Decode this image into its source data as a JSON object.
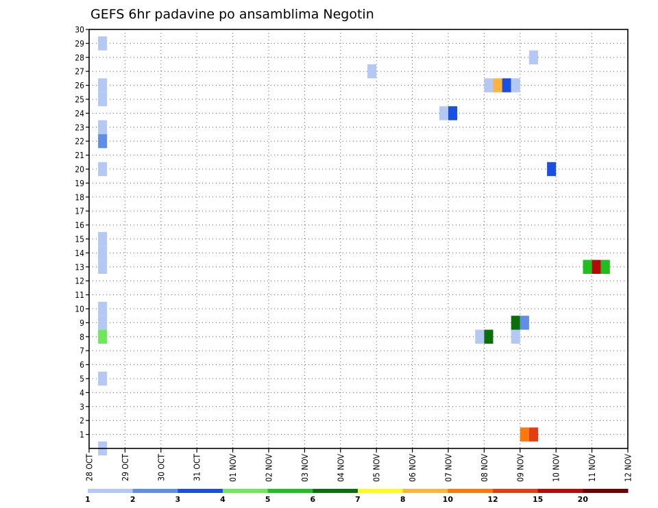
{
  "chart_data": {
    "type": "heatmap",
    "title": "GEFS 6hr padavine po ansamblima Negotin",
    "xlabel": "",
    "ylabel": "",
    "x_tick_labels": [
      "28 OCT",
      "29 OCT",
      "30 OCT",
      "31 OCT",
      "01 NOV",
      "02 NOV",
      "03 NOV",
      "04 NOV",
      "05 NOV",
      "06 NOV",
      "07 NOV",
      "08 NOV",
      "09 NOV",
      "10 NOV",
      "11 NOV",
      "12 NOV"
    ],
    "x_steps_per_day": 4,
    "y_tick_labels": [
      "1",
      "2",
      "3",
      "4",
      "5",
      "6",
      "7",
      "8",
      "9",
      "10",
      "11",
      "12",
      "13",
      "14",
      "15",
      "16",
      "17",
      "18",
      "19",
      "20",
      "21",
      "22",
      "23",
      "24",
      "25",
      "26",
      "27",
      "28",
      "29",
      "30"
    ],
    "ylim": [
      0,
      30
    ],
    "grid": true,
    "legend": {
      "placement": "bottom",
      "boundaries": [
        "1",
        "2",
        "3",
        "4",
        "5",
        "6",
        "7",
        "8",
        "10",
        "12",
        "15",
        "20"
      ],
      "colors": [
        "#b3c8f5",
        "#5f8ee8",
        "#1a4fe0",
        "#6ee85a",
        "#1fbf1f",
        "#0a6e0a",
        "#fcfc1e",
        "#fcb43c",
        "#fc780a",
        "#e63c14",
        "#b40a0a",
        "#6e0000"
      ]
    },
    "cells": [
      {
        "date": "28 OCT",
        "step": 1,
        "member": 0,
        "bin": 0
      },
      {
        "date": "28 OCT",
        "step": 1,
        "member": 5,
        "bin": 0
      },
      {
        "date": "28 OCT",
        "step": 1,
        "member": 8,
        "bin": 3
      },
      {
        "date": "28 OCT",
        "step": 1,
        "member": 9,
        "bin": 0
      },
      {
        "date": "28 OCT",
        "step": 1,
        "member": 10,
        "bin": 0
      },
      {
        "date": "28 OCT",
        "step": 1,
        "member": 13,
        "bin": 0
      },
      {
        "date": "28 OCT",
        "step": 1,
        "member": 14,
        "bin": 0
      },
      {
        "date": "28 OCT",
        "step": 1,
        "member": 15,
        "bin": 0
      },
      {
        "date": "28 OCT",
        "step": 1,
        "member": 20,
        "bin": 0
      },
      {
        "date": "28 OCT",
        "step": 1,
        "member": 22,
        "bin": 1
      },
      {
        "date": "28 OCT",
        "step": 1,
        "member": 23,
        "bin": 0
      },
      {
        "date": "28 OCT",
        "step": 1,
        "member": 25,
        "bin": 0
      },
      {
        "date": "28 OCT",
        "step": 1,
        "member": 26,
        "bin": 0
      },
      {
        "date": "28 OCT",
        "step": 1,
        "member": 29,
        "bin": 0
      },
      {
        "date": "04 NOV",
        "step": 3,
        "member": 27,
        "bin": 0
      },
      {
        "date": "06 NOV",
        "step": 3,
        "member": 24,
        "bin": 0
      },
      {
        "date": "07 NOV",
        "step": 0,
        "member": 24,
        "bin": 2
      },
      {
        "date": "07 NOV",
        "step": 3,
        "member": 8,
        "bin": 0
      },
      {
        "date": "08 NOV",
        "step": 0,
        "member": 8,
        "bin": 5
      },
      {
        "date": "08 NOV",
        "step": 0,
        "member": 26,
        "bin": 0
      },
      {
        "date": "08 NOV",
        "step": 1,
        "member": 26,
        "bin": 7
      },
      {
        "date": "08 NOV",
        "step": 2,
        "member": 26,
        "bin": 2
      },
      {
        "date": "08 NOV",
        "step": 3,
        "member": 8,
        "bin": 0
      },
      {
        "date": "08 NOV",
        "step": 3,
        "member": 9,
        "bin": 5
      },
      {
        "date": "08 NOV",
        "step": 3,
        "member": 26,
        "bin": 0
      },
      {
        "date": "09 NOV",
        "step": 0,
        "member": 1,
        "bin": 8
      },
      {
        "date": "09 NOV",
        "step": 0,
        "member": 9,
        "bin": 1
      },
      {
        "date": "09 NOV",
        "step": 1,
        "member": 1,
        "bin": 9
      },
      {
        "date": "09 NOV",
        "step": 1,
        "member": 28,
        "bin": 0
      },
      {
        "date": "09 NOV",
        "step": 3,
        "member": 20,
        "bin": 2
      },
      {
        "date": "10 NOV",
        "step": 3,
        "member": 13,
        "bin": 4
      },
      {
        "date": "11 NOV",
        "step": 0,
        "member": 13,
        "bin": 10
      },
      {
        "date": "11 NOV",
        "step": 1,
        "member": 13,
        "bin": 4
      }
    ]
  }
}
